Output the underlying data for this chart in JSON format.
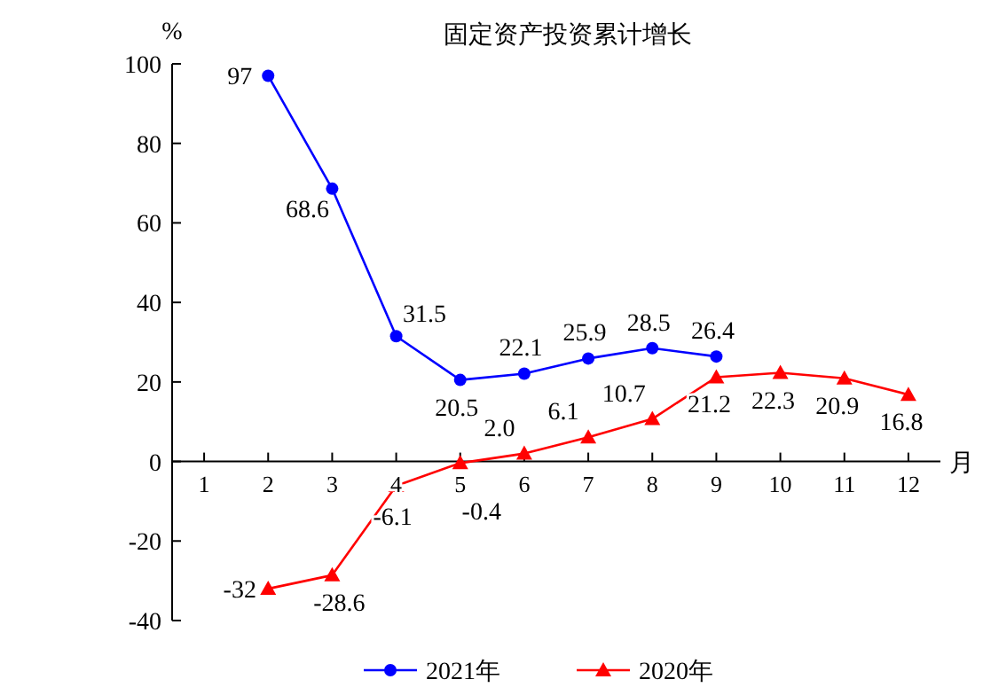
{
  "chart_data": {
    "type": "line",
    "title": "固定资产投资累计增长",
    "ylabel": "%",
    "xlabel": "月",
    "xlim": [
      0.5,
      12.5
    ],
    "xticks": [
      1,
      2,
      3,
      4,
      5,
      6,
      7,
      8,
      9,
      10,
      11,
      12
    ],
    "ylim": [
      -40,
      100
    ],
    "yticks": [
      -40,
      -20,
      0,
      20,
      40,
      60,
      80,
      100
    ],
    "legend": "bottom",
    "data_labels": true,
    "grid": false,
    "series": [
      {
        "name": "2021年",
        "color": "#0000ff",
        "marker": "circle",
        "x": [
          2,
          3,
          4,
          5,
          6,
          7,
          8,
          9
        ],
        "values": [
          97,
          68.6,
          31.5,
          20.5,
          22.1,
          25.9,
          28.5,
          26.4
        ],
        "value_labels": [
          "97",
          "68.6",
          "31.5",
          "20.5",
          "22.1",
          "25.9",
          "28.5",
          "26.4"
        ]
      },
      {
        "name": "2020年",
        "color": "#ff0000",
        "marker": "triangle",
        "x": [
          2,
          3,
          4,
          5,
          6,
          7,
          8,
          9,
          10,
          11,
          12
        ],
        "values": [
          -32,
          -28.6,
          -6.1,
          -0.4,
          2.0,
          6.1,
          10.7,
          21.2,
          22.3,
          20.9,
          16.8
        ],
        "value_labels": [
          "-32",
          "-28.6",
          "-6.1",
          "-0.4",
          "2.0",
          "6.1",
          "10.7",
          "21.2",
          "22.3",
          "20.9",
          "16.8"
        ]
      }
    ]
  }
}
